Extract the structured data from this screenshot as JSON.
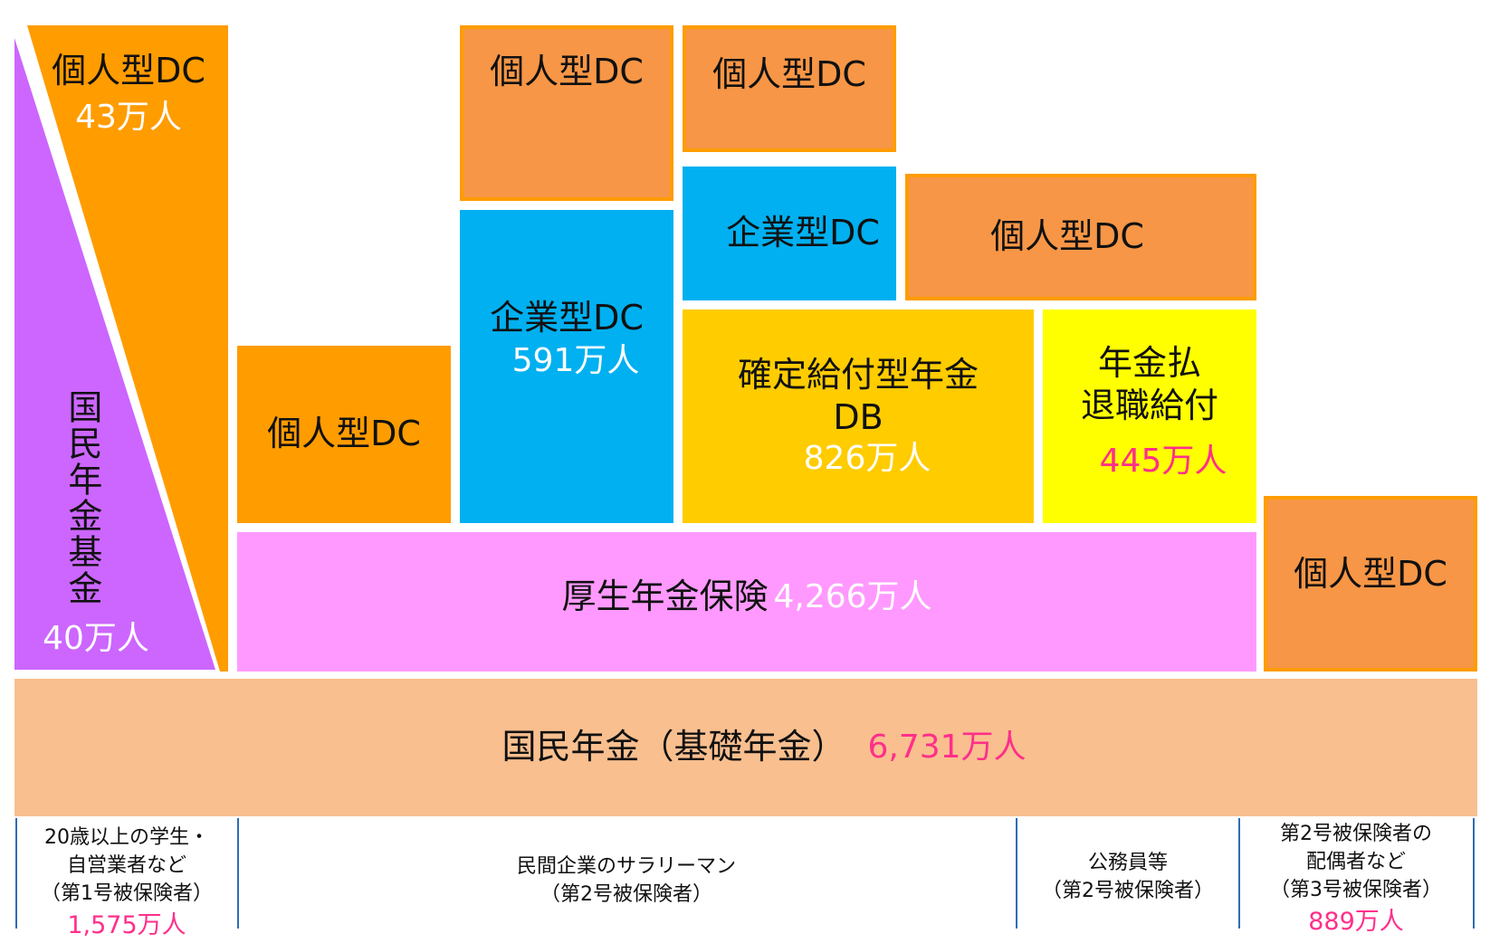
{
  "colors": {
    "orange": "#ff9c00",
    "orange_soft": "#f79646",
    "blue": "#00b0f0",
    "gold": "#ffcc00",
    "yellow": "#ffff00",
    "purple": "#cc66ff",
    "lilac": "#ff99ff",
    "peach": "#f9bf8f",
    "pink_text": "#ff2f8a"
  },
  "tier3": {
    "self_employed_dc": {
      "label": "個人型DC",
      "count": "43万人"
    },
    "private_dc_top": {
      "label": "個人型DC"
    },
    "civil_dc_top": {
      "label": "個人型DC"
    },
    "civil_dc_right": {
      "label": "個人型DC"
    }
  },
  "tier2": {
    "national_pension_fund": {
      "label": "国民年金基金",
      "count": "40万人"
    },
    "private_individual_dc": {
      "label": "個人型DC"
    },
    "corporate_dc_private": {
      "label": "企業型DC",
      "count": "591万人"
    },
    "corporate_dc_civil": {
      "label": "企業型DC"
    },
    "db": {
      "label_line1": "確定給付型年金",
      "label_line2": "DB",
      "count": "826万人"
    },
    "retirement": {
      "label_line1": "年金払",
      "label_line2": "退職給付",
      "count": "445万人"
    },
    "spouse_dc": {
      "label": "個人型DC"
    }
  },
  "tier1": {
    "employees_pension": {
      "label": "厚生年金保険",
      "count": "4,266万人"
    }
  },
  "base": {
    "national_pension": {
      "label": "国民年金（基礎年金）",
      "count": "6,731万人"
    }
  },
  "categories": {
    "first": {
      "line1": "20歳以上の学生・",
      "line2": "自営業者など",
      "line3": "（第1号被保険者）",
      "count": "1,575万人"
    },
    "private": {
      "line1": "民間企業のサラリーマン",
      "line2": "（第2号被保険者）"
    },
    "civil": {
      "line1": "公務員等",
      "line2": "（第2号被保険者）"
    },
    "third": {
      "line1": "第2号被保険者の",
      "line2": "配偶者など",
      "line3": "（第3号被保険者）",
      "count": "889万人"
    }
  }
}
